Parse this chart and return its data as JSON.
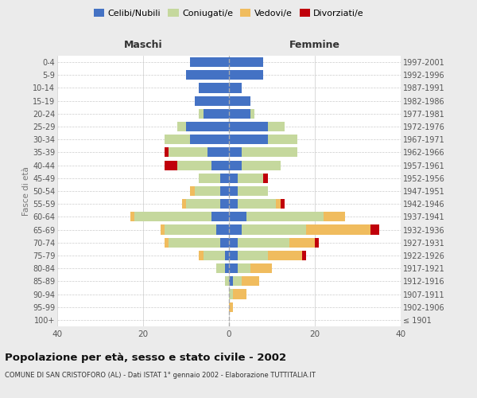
{
  "age_groups": [
    "100+",
    "95-99",
    "90-94",
    "85-89",
    "80-84",
    "75-79",
    "70-74",
    "65-69",
    "60-64",
    "55-59",
    "50-54",
    "45-49",
    "40-44",
    "35-39",
    "30-34",
    "25-29",
    "20-24",
    "15-19",
    "10-14",
    "5-9",
    "0-4"
  ],
  "birth_years": [
    "≤ 1901",
    "1902-1906",
    "1907-1911",
    "1912-1916",
    "1917-1921",
    "1922-1926",
    "1927-1931",
    "1932-1936",
    "1937-1941",
    "1942-1946",
    "1947-1951",
    "1952-1956",
    "1957-1961",
    "1962-1966",
    "1967-1971",
    "1972-1976",
    "1977-1981",
    "1982-1986",
    "1987-1991",
    "1992-1996",
    "1997-2001"
  ],
  "maschi": {
    "celibi": [
      0,
      0,
      0,
      0,
      1,
      1,
      2,
      3,
      4,
      2,
      2,
      2,
      4,
      5,
      9,
      10,
      6,
      8,
      7,
      10,
      9
    ],
    "coniugati": [
      0,
      0,
      0,
      1,
      2,
      5,
      12,
      12,
      18,
      8,
      6,
      5,
      8,
      9,
      6,
      2,
      1,
      0,
      0,
      0,
      0
    ],
    "vedovi": [
      0,
      0,
      0,
      0,
      0,
      1,
      1,
      1,
      1,
      1,
      1,
      0,
      0,
      0,
      0,
      0,
      0,
      0,
      0,
      0,
      0
    ],
    "divorziati": [
      0,
      0,
      0,
      0,
      0,
      0,
      0,
      0,
      0,
      0,
      0,
      0,
      3,
      1,
      0,
      0,
      0,
      0,
      0,
      0,
      0
    ]
  },
  "femmine": {
    "nubili": [
      0,
      0,
      0,
      1,
      2,
      2,
      2,
      3,
      4,
      2,
      2,
      2,
      3,
      3,
      9,
      9,
      5,
      5,
      3,
      8,
      8
    ],
    "coniugate": [
      0,
      0,
      1,
      2,
      3,
      7,
      12,
      15,
      18,
      9,
      7,
      6,
      9,
      13,
      7,
      4,
      1,
      0,
      0,
      0,
      0
    ],
    "vedove": [
      0,
      1,
      3,
      4,
      5,
      8,
      6,
      15,
      5,
      1,
      0,
      0,
      0,
      0,
      0,
      0,
      0,
      0,
      0,
      0,
      0
    ],
    "divorziate": [
      0,
      0,
      0,
      0,
      0,
      1,
      1,
      2,
      0,
      1,
      0,
      1,
      0,
      0,
      0,
      0,
      0,
      0,
      0,
      0,
      0
    ]
  },
  "colors": {
    "celibi_nubili": "#4472C4",
    "coniugati_e": "#c5d89d",
    "vedovi_e": "#f0bc5e",
    "divorziati_e": "#c0000b"
  },
  "xlim": 40,
  "title": "Popolazione per età, sesso e stato civile - 2002",
  "subtitle": "COMUNE DI SAN CRISTOFORO (AL) - Dati ISTAT 1° gennaio 2002 - Elaborazione TUTTITALIA.IT",
  "ylabel_left": "Fasce di età",
  "xlabel_maschi": "Maschi",
  "xlabel_femmine": "Femmine",
  "legend_labels": [
    "Celibi/Nubili",
    "Coniugati/e",
    "Vedovi/e",
    "Divorziati/e"
  ],
  "background_color": "#ebebeb",
  "plot_background": "#ffffff"
}
